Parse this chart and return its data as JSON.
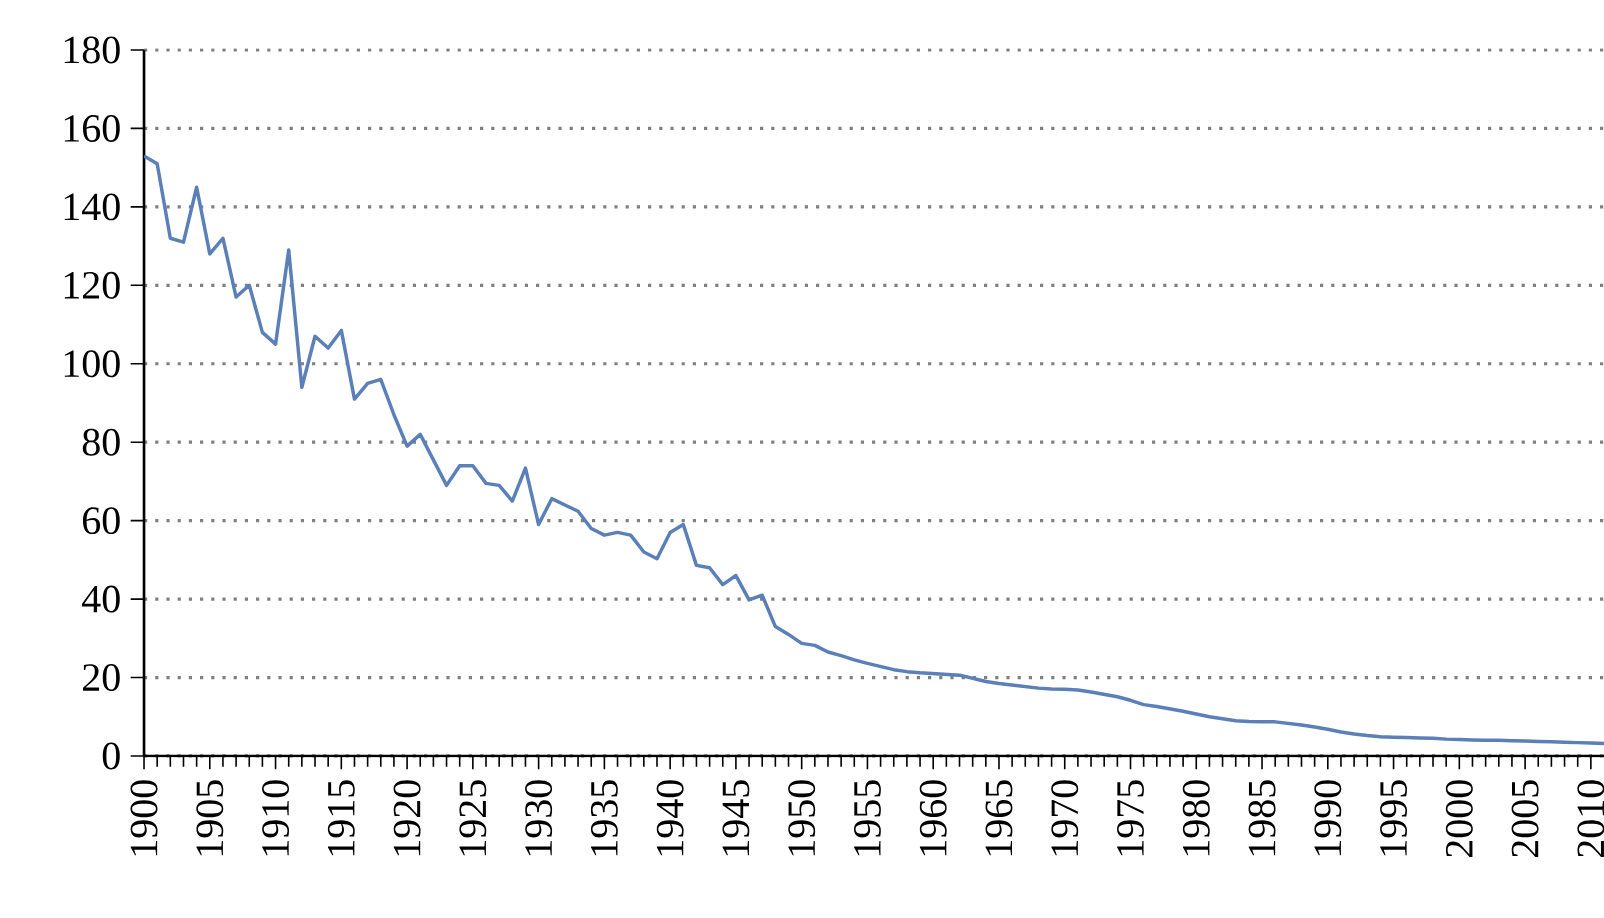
{
  "chart_data": {
    "type": "line",
    "x": [
      1900,
      1901,
      1902,
      1903,
      1904,
      1905,
      1906,
      1907,
      1908,
      1909,
      1910,
      1911,
      1912,
      1913,
      1914,
      1915,
      1916,
      1917,
      1918,
      1919,
      1920,
      1921,
      1922,
      1923,
      1924,
      1925,
      1926,
      1927,
      1928,
      1929,
      1930,
      1931,
      1932,
      1933,
      1934,
      1935,
      1936,
      1937,
      1938,
      1939,
      1940,
      1941,
      1942,
      1943,
      1944,
      1945,
      1946,
      1947,
      1948,
      1949,
      1950,
      1951,
      1952,
      1953,
      1954,
      1955,
      1956,
      1957,
      1958,
      1959,
      1960,
      1961,
      1962,
      1963,
      1964,
      1965,
      1966,
      1967,
      1968,
      1969,
      1970,
      1971,
      1972,
      1973,
      1974,
      1975,
      1976,
      1977,
      1978,
      1979,
      1980,
      1981,
      1982,
      1983,
      1984,
      1985,
      1986,
      1987,
      1988,
      1989,
      1990,
      1991,
      1992,
      1993,
      1994,
      1995,
      1996,
      1997,
      1998,
      1999,
      2000,
      2001,
      2002,
      2003,
      2004,
      2005,
      2006,
      2007,
      2008,
      2009,
      2010,
      2011
    ],
    "series": [
      {
        "color": "#5b7fb8",
        "values": [
          153,
          151,
          132,
          131,
          145,
          128,
          132,
          117,
          120,
          108,
          105,
          129,
          94,
          107,
          104,
          108.5,
          91,
          95,
          96,
          87,
          79,
          82,
          75.5,
          69,
          74,
          74,
          69.5,
          69,
          65,
          73.4,
          59,
          65.6,
          64,
          62.4,
          58,
          56.3,
          57,
          56.3,
          52,
          50.3,
          57,
          59,
          48.6,
          48,
          43.7,
          46,
          39.8,
          41,
          33,
          31,
          28.7,
          28.2,
          26.5,
          25.6,
          24.5,
          23.6,
          22.8,
          22,
          21.5,
          21.2,
          21,
          20.8,
          20.6,
          19.8,
          19,
          18.5,
          18.1,
          17.7,
          17.3,
          17.1,
          17,
          16.8,
          16.3,
          15.7,
          15.1,
          14.2,
          13.1,
          12.6,
          12,
          11.4,
          10.7,
          10,
          9.5,
          9,
          8.8,
          8.7,
          8.7,
          8.3,
          7.9,
          7.4,
          6.8,
          6.1,
          5.6,
          5.2,
          4.9,
          4.8,
          4.7,
          4.6,
          4.5,
          4.3,
          4.2,
          4.1,
          4,
          4,
          3.9,
          3.8,
          3.7,
          3.6,
          3.5,
          3.4,
          3.3,
          3.2
        ]
      }
    ],
    "xlim": [
      1900,
      2011
    ],
    "xticks": [
      1900,
      1905,
      1910,
      1915,
      1920,
      1925,
      1930,
      1935,
      1940,
      1945,
      1950,
      1955,
      1960,
      1965,
      1970,
      1975,
      1980,
      1985,
      1990,
      1995,
      2000,
      2005,
      2010
    ],
    "ylim": [
      0,
      180
    ],
    "yticks": [
      0,
      20,
      40,
      60,
      80,
      100,
      120,
      140,
      160,
      180
    ],
    "grid": "y",
    "marker": "none",
    "line_style": "solid"
  }
}
